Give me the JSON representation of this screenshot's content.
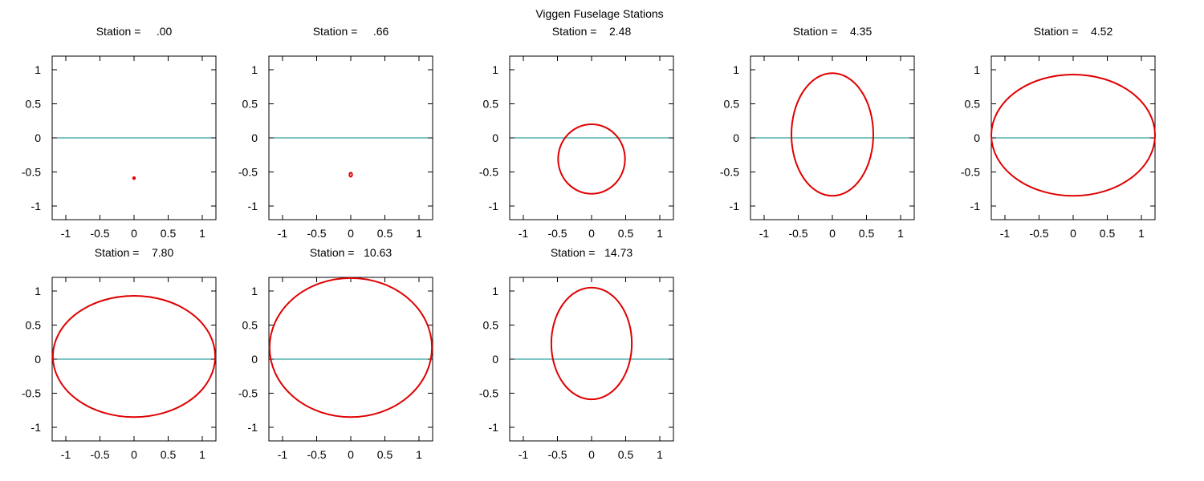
{
  "figure": {
    "title": "Viggen Fuselage Stations",
    "colors": {
      "outline": "#e00000",
      "axis_line": "#008b8b",
      "frame": "#000000",
      "background": "#ffffff"
    }
  },
  "chart_data": [
    {
      "type": "line",
      "title": "Station =     .00",
      "station": 0.0,
      "xlim": [
        -1.2,
        1.2
      ],
      "ylim": [
        -1.2,
        1.2
      ],
      "xticks": [
        "-1",
        "-0.5",
        "0",
        "0.5",
        "1"
      ],
      "yticks": [
        "1",
        "0.5",
        "0",
        "-0.5",
        "-1"
      ],
      "grid": false,
      "reference_line_y": 0,
      "series": [
        {
          "shape": "ellipse",
          "center": [
            0,
            -0.59
          ],
          "half_width": 0.005,
          "half_height": 0.005
        }
      ]
    },
    {
      "type": "line",
      "title": "Station =     .66",
      "station": 0.66,
      "xlim": [
        -1.2,
        1.2
      ],
      "ylim": [
        -1.2,
        1.2
      ],
      "xticks": [
        "-1",
        "-0.5",
        "0",
        "0.5",
        "1"
      ],
      "yticks": [
        "1",
        "0.5",
        "0",
        "-0.5",
        "-1"
      ],
      "grid": false,
      "reference_line_y": 0,
      "series": [
        {
          "shape": "ellipse",
          "center": [
            0,
            -0.54
          ],
          "half_width": 0.02,
          "half_height": 0.03
        }
      ]
    },
    {
      "type": "line",
      "title": "Station =    2.48",
      "station": 2.48,
      "xlim": [
        -1.2,
        1.2
      ],
      "ylim": [
        -1.2,
        1.2
      ],
      "xticks": [
        "-1",
        "-0.5",
        "0",
        "0.5",
        "1"
      ],
      "yticks": [
        "1",
        "0.5",
        "0",
        "-0.5",
        "-1"
      ],
      "grid": false,
      "reference_line_y": 0,
      "series": [
        {
          "shape": "ellipse",
          "center": [
            0,
            -0.31
          ],
          "half_width": 0.49,
          "half_height": 0.51
        }
      ]
    },
    {
      "type": "line",
      "title": "Station =    4.35",
      "station": 4.35,
      "xlim": [
        -1.2,
        1.2
      ],
      "ylim": [
        -1.2,
        1.2
      ],
      "xticks": [
        "-1",
        "-0.5",
        "0",
        "0.5",
        "1"
      ],
      "yticks": [
        "1",
        "0.5",
        "0",
        "-0.5",
        "-1"
      ],
      "grid": false,
      "reference_line_y": 0,
      "series": [
        {
          "shape": "ellipse",
          "center": [
            0,
            0.05
          ],
          "half_width": 0.6,
          "half_height": 0.9
        }
      ]
    },
    {
      "type": "line",
      "title": "Station =    4.52",
      "station": 4.52,
      "xlim": [
        -1.2,
        1.2
      ],
      "ylim": [
        -1.2,
        1.2
      ],
      "xticks": [
        "-1",
        "-0.5",
        "0",
        "0.5",
        "1"
      ],
      "yticks": [
        "1",
        "0.5",
        "0",
        "-0.5",
        "-1"
      ],
      "grid": false,
      "reference_line_y": 0,
      "series": [
        {
          "shape": "ellipse",
          "center": [
            0,
            0.04
          ],
          "half_width": 1.2,
          "half_height": 0.89
        }
      ]
    },
    {
      "type": "line",
      "title": "Station =    7.80",
      "station": 7.8,
      "xlim": [
        -1.2,
        1.2
      ],
      "ylim": [
        -1.2,
        1.2
      ],
      "xticks": [
        "-1",
        "-0.5",
        "0",
        "0.5",
        "1"
      ],
      "yticks": [
        "1",
        "0.5",
        "0",
        "-0.5",
        "-1"
      ],
      "grid": false,
      "reference_line_y": 0,
      "series": [
        {
          "shape": "ellipse",
          "center": [
            0,
            0.04
          ],
          "half_width": 1.19,
          "half_height": 0.89
        }
      ]
    },
    {
      "type": "line",
      "title": "Station =   10.63",
      "station": 10.63,
      "xlim": [
        -1.2,
        1.2
      ],
      "ylim": [
        -1.2,
        1.2
      ],
      "xticks": [
        "-1",
        "-0.5",
        "0",
        "0.5",
        "1"
      ],
      "yticks": [
        "1",
        "0.5",
        "0",
        "-0.5",
        "-1"
      ],
      "grid": false,
      "reference_line_y": 0,
      "series": [
        {
          "shape": "ellipse",
          "center": [
            0,
            0.17
          ],
          "half_width": 1.19,
          "half_height": 1.02
        }
      ]
    },
    {
      "type": "line",
      "title": "Station =   14.73",
      "station": 14.73,
      "xlim": [
        -1.2,
        1.2
      ],
      "ylim": [
        -1.2,
        1.2
      ],
      "xticks": [
        "-1",
        "-0.5",
        "0",
        "0.5",
        "1"
      ],
      "yticks": [
        "1",
        "0.5",
        "0",
        "-0.5",
        "-1"
      ],
      "grid": false,
      "reference_line_y": 0,
      "series": [
        {
          "shape": "ellipse",
          "center": [
            0,
            0.23
          ],
          "half_width": 0.59,
          "half_height": 0.82
        }
      ]
    }
  ]
}
